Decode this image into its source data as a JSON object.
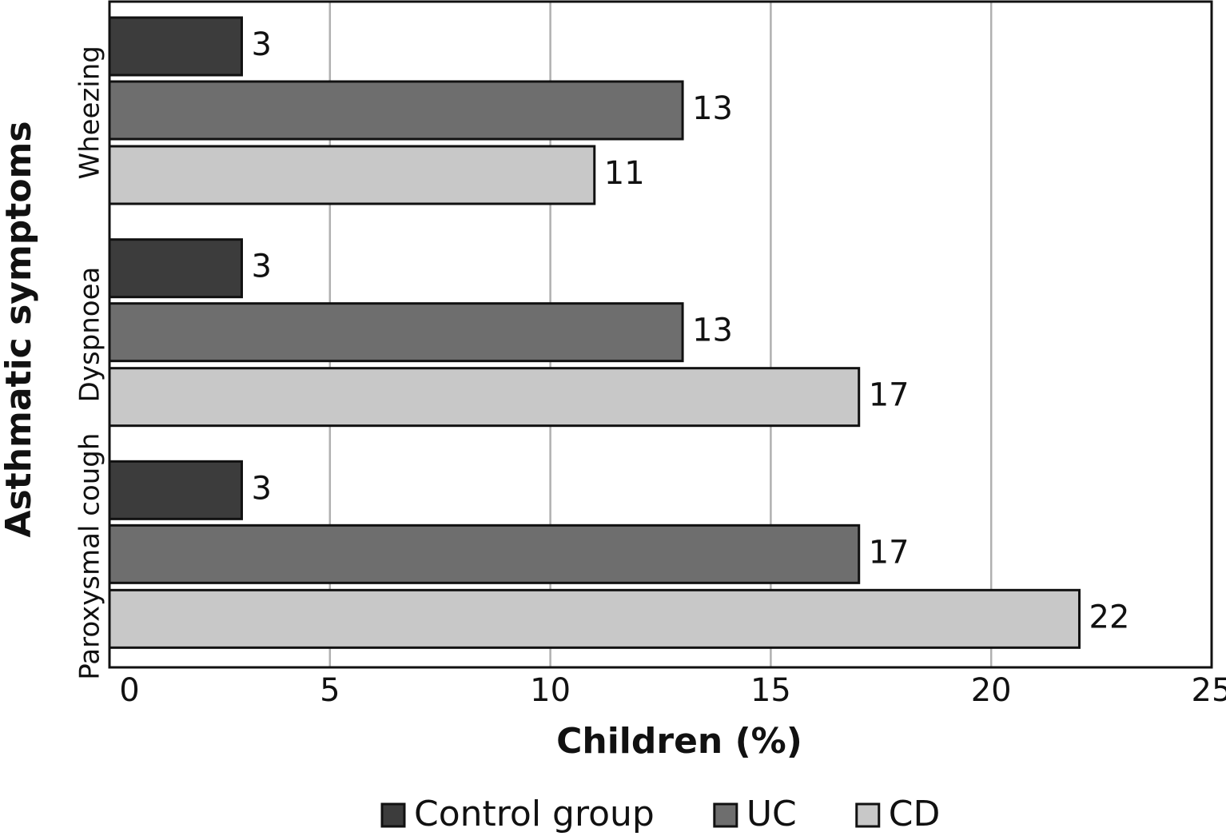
{
  "chart_data": {
    "type": "hbar",
    "categories": [
      "Wheezing",
      "Dyspnoea",
      "Paroxysmal cough"
    ],
    "series": [
      {
        "name": "Control group",
        "color": "#3c3c3c",
        "values": [
          3,
          3,
          3
        ]
      },
      {
        "name": "UC",
        "color": "#6e6e6e",
        "values": [
          13,
          13,
          17
        ]
      },
      {
        "name": "CD",
        "color": "#c8c8c8",
        "values": [
          11,
          17,
          22
        ]
      }
    ],
    "xlim": [
      0,
      25
    ],
    "xticks": [
      0,
      5,
      10,
      15,
      20,
      25
    ],
    "xlabel": "Children (%)",
    "ylabel": "Asthmatic symptoms",
    "grid": true,
    "legend": "bottom"
  }
}
